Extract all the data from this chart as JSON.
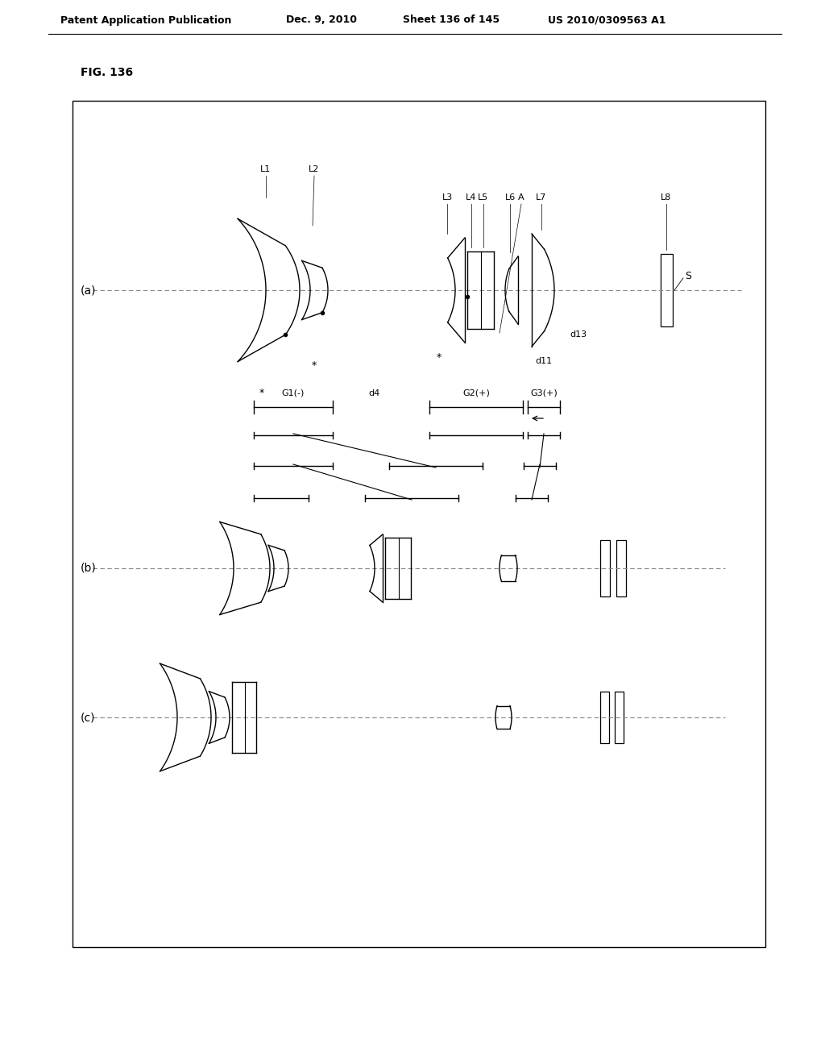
{
  "title_line1": "Patent Application Publication",
  "title_line2": "Dec. 9, 2010",
  "title_line3": "Sheet 136 of 145",
  "title_line4": "US 2010/0309563 A1",
  "fig_label": "FIG. 136",
  "background": "#ffffff"
}
